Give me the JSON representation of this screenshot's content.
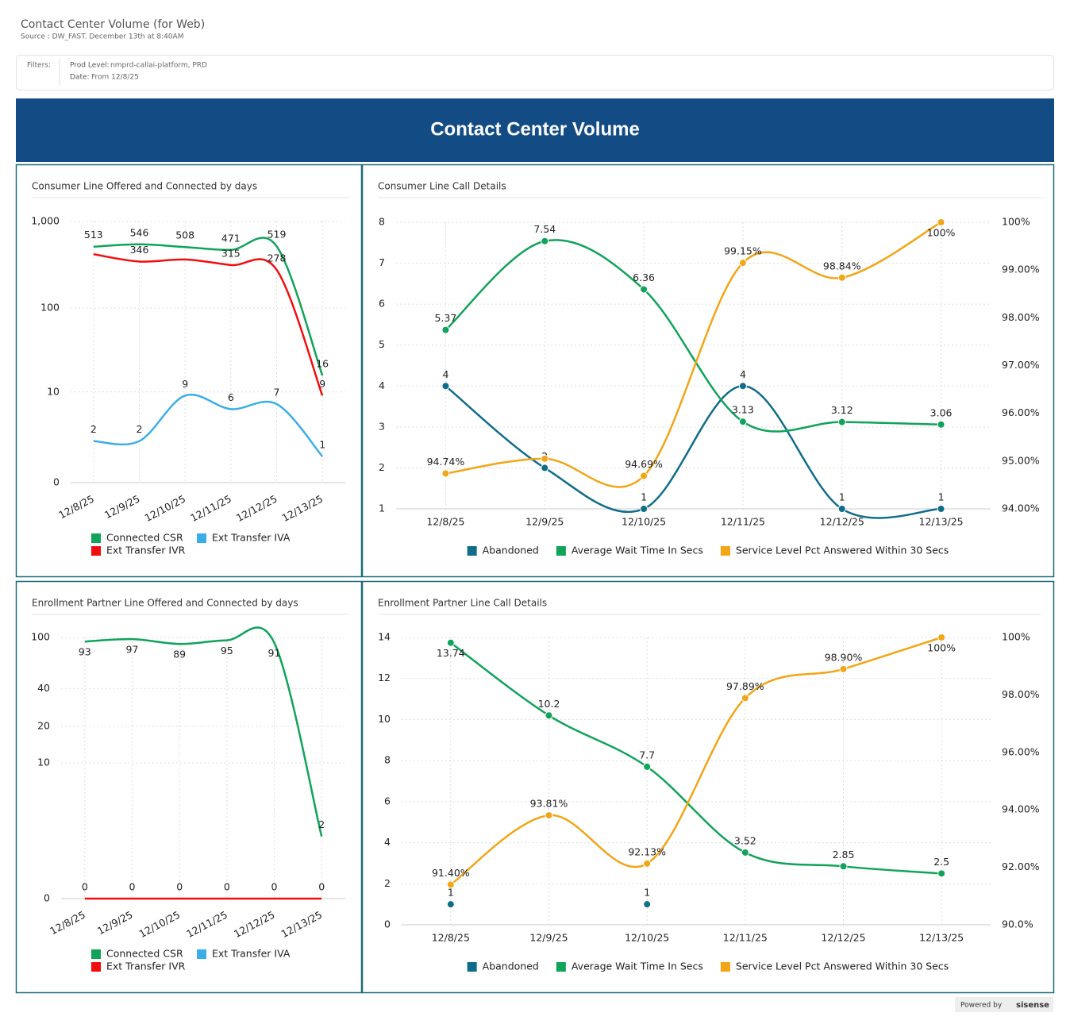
{
  "header": {
    "title": "Contact Center Volume (for Web)",
    "source": "Source : DW_FAST. December 13th at 8:40AM"
  },
  "filters": {
    "label": "Filters:",
    "items": [
      {
        "name": "Prod Level:",
        "value": "nmprd-callai-platform, PRD"
      },
      {
        "name": "Date:",
        "value": "From 12/8/25"
      }
    ]
  },
  "banner": "Contact Center Volume",
  "footer": {
    "powered_by": "Powered by",
    "brand": "sisense"
  },
  "chart_data": [
    {
      "type": "line",
      "title": "Consumer Line Offered and Connected by days",
      "categories": [
        "12/8/25",
        "12/9/25",
        "12/10/25",
        "12/11/25",
        "12/12/25",
        "12/13/25"
      ],
      "log_scale": true,
      "grid": true,
      "legend": "bottom",
      "ylim": [
        0,
        1000
      ],
      "yticks": [
        0,
        10,
        100,
        {
          "value": 1000,
          "label": "1,000"
        }
      ],
      "series": [
        {
          "name": "Connected CSR",
          "color": "#10a35a",
          "values": [
            513,
            546,
            508,
            471,
            519,
            16
          ]
        },
        {
          "name": "Ext Transfer IVA",
          "color": "#3aaee8",
          "values": [
            2,
            2,
            9,
            6,
            7,
            1
          ]
        },
        {
          "name": "Ext Transfer IVR",
          "color": "#f20d0d",
          "values": [
            420,
            346,
            365,
            315,
            278,
            9
          ],
          "value_labels": [
            null,
            "346",
            null,
            "315",
            "278",
            "9"
          ]
        }
      ]
    },
    {
      "type": "line",
      "title": "Consumer Line Call Details",
      "markers": true,
      "categories": [
        "12/8/25",
        "12/9/25",
        "12/10/25",
        "12/11/25",
        "12/12/25",
        "12/13/25"
      ],
      "grid": true,
      "legend": "bottom",
      "ylim": [
        1,
        8
      ],
      "yticks": [
        1,
        2,
        3,
        4,
        5,
        6,
        7,
        8
      ],
      "y2lim": [
        94,
        100
      ],
      "y2ticks": [
        {
          "value": 94,
          "label": "94.00%"
        },
        {
          "value": 95,
          "label": "95.00%"
        },
        {
          "value": 96,
          "label": "96.00%"
        },
        {
          "value": 97,
          "label": "97.00%"
        },
        {
          "value": 98,
          "label": "98.00%"
        },
        {
          "value": 99,
          "label": "99.00%"
        },
        {
          "value": 100,
          "label": "100%"
        }
      ],
      "series": [
        {
          "name": "Abandoned",
          "color": "#0f6d8a",
          "values": [
            4,
            2,
            1,
            4,
            1,
            1
          ]
        },
        {
          "name": "Average Wait Time In Secs",
          "color": "#10a35a",
          "values": [
            5.37,
            7.54,
            6.36,
            3.13,
            3.12,
            3.06
          ]
        },
        {
          "name": "Service Level Pct Answered Within 30 Secs",
          "color": "#f2a516",
          "axis": "y2",
          "values": [
            94.74,
            95.05,
            94.69,
            99.15,
            98.84,
            100
          ],
          "value_labels": [
            "94.74%",
            null,
            "94.69%",
            "99.15%",
            "98.84%",
            "100%"
          ]
        }
      ]
    },
    {
      "type": "line",
      "title": "Enrollment Partner Line Offered and Connected by days",
      "categories": [
        "12/8/25",
        "12/9/25",
        "12/10/25",
        "12/11/25",
        "12/12/25",
        "12/13/25"
      ],
      "log_scale": true,
      "grid": true,
      "legend": "bottom",
      "ylim": [
        0,
        100
      ],
      "yticks": [
        0,
        10,
        20,
        40,
        100
      ],
      "series": [
        {
          "name": "Connected CSR",
          "color": "#10a35a",
          "values": [
            93,
            97,
            89,
            95,
            91,
            2
          ]
        },
        {
          "name": "Ext Transfer IVA",
          "color": "#3aaee8",
          "values": [
            null,
            null,
            null,
            null,
            null,
            null
          ]
        },
        {
          "name": "Ext Transfer IVR",
          "color": "#f20d0d",
          "values": [
            0,
            0,
            0,
            0,
            0,
            0
          ]
        }
      ]
    },
    {
      "type": "line",
      "title": "Enrollment Partner Line Call Details",
      "markers": true,
      "categories": [
        "12/8/25",
        "12/9/25",
        "12/10/25",
        "12/11/25",
        "12/12/25",
        "12/13/25"
      ],
      "grid": true,
      "legend": "bottom",
      "ylim": [
        0,
        14
      ],
      "yticks": [
        0,
        2,
        4,
        6,
        8,
        10,
        12,
        14
      ],
      "y2lim": [
        90,
        100
      ],
      "y2ticks": [
        {
          "value": 90,
          "label": "90.0%"
        },
        {
          "value": 92,
          "label": "92.00%"
        },
        {
          "value": 94,
          "label": "94.00%"
        },
        {
          "value": 96,
          "label": "96.00%"
        },
        {
          "value": 98,
          "label": "98.00%"
        },
        {
          "value": 100,
          "label": "100%"
        }
      ],
      "series": [
        {
          "name": "Abandoned",
          "color": "#0f6d8a",
          "values": [
            1,
            null,
            1,
            null,
            null,
            null
          ]
        },
        {
          "name": "Average Wait Time In Secs",
          "color": "#10a35a",
          "values": [
            13.74,
            10.2,
            7.7,
            3.52,
            2.85,
            2.5
          ]
        },
        {
          "name": "Service Level Pct Answered Within 30 Secs",
          "color": "#f2a516",
          "axis": "y2",
          "values": [
            91.4,
            93.81,
            92.13,
            97.89,
            98.9,
            100
          ],
          "value_labels": [
            "91.40%",
            "93.81%",
            "92.13%",
            "97.89%",
            "98.90%",
            "100%"
          ]
        }
      ]
    }
  ]
}
